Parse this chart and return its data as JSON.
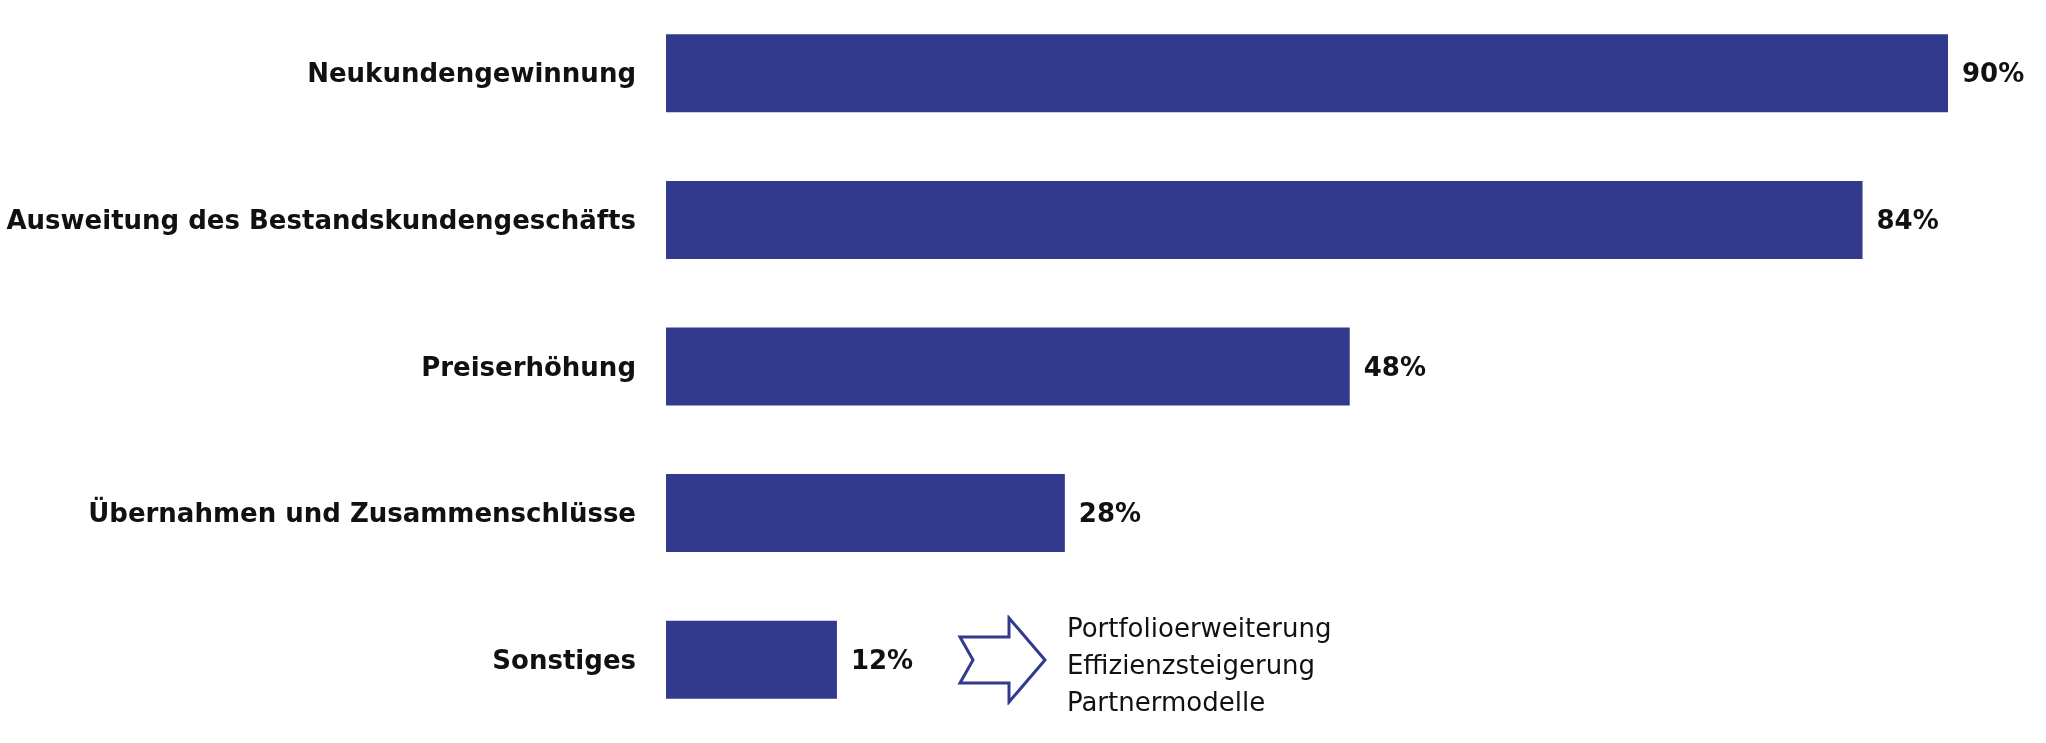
{
  "chart_data": {
    "type": "bar",
    "orientation": "horizontal",
    "categories": [
      "Neukundengewinnung",
      "Ausweitung des Bestandskundengeschäfts",
      "Preiserhöhung",
      "Übernahmen und Zusammenschlüsse",
      "Sonstiges"
    ],
    "values": [
      90,
      84,
      48,
      28,
      12
    ],
    "value_labels": [
      "90%",
      "84%",
      "48%",
      "28%",
      "12%"
    ],
    "color": "#323a8e",
    "annotations": [
      "Portfolioerweiterung\nEffizienzsteigerung\nPartnermodelle"
    ]
  }
}
